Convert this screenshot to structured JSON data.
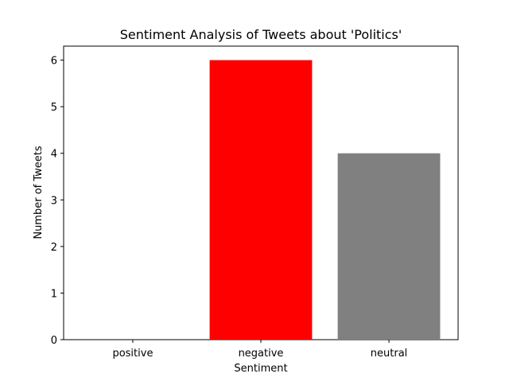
{
  "chart_data": {
    "type": "bar",
    "title": "Sentiment Analysis of Tweets about 'Politics'",
    "xlabel": "Sentiment",
    "ylabel": "Number of Tweets",
    "categories": [
      "positive",
      "negative",
      "neutral"
    ],
    "values": [
      0,
      6,
      4
    ],
    "colors": [
      "#008000",
      "#ff0000",
      "#808080"
    ],
    "ylim": [
      0,
      6.3
    ],
    "yticks": [
      "0",
      "1",
      "2",
      "3",
      "4",
      "5",
      "6"
    ],
    "grid": false,
    "legend": "none"
  }
}
